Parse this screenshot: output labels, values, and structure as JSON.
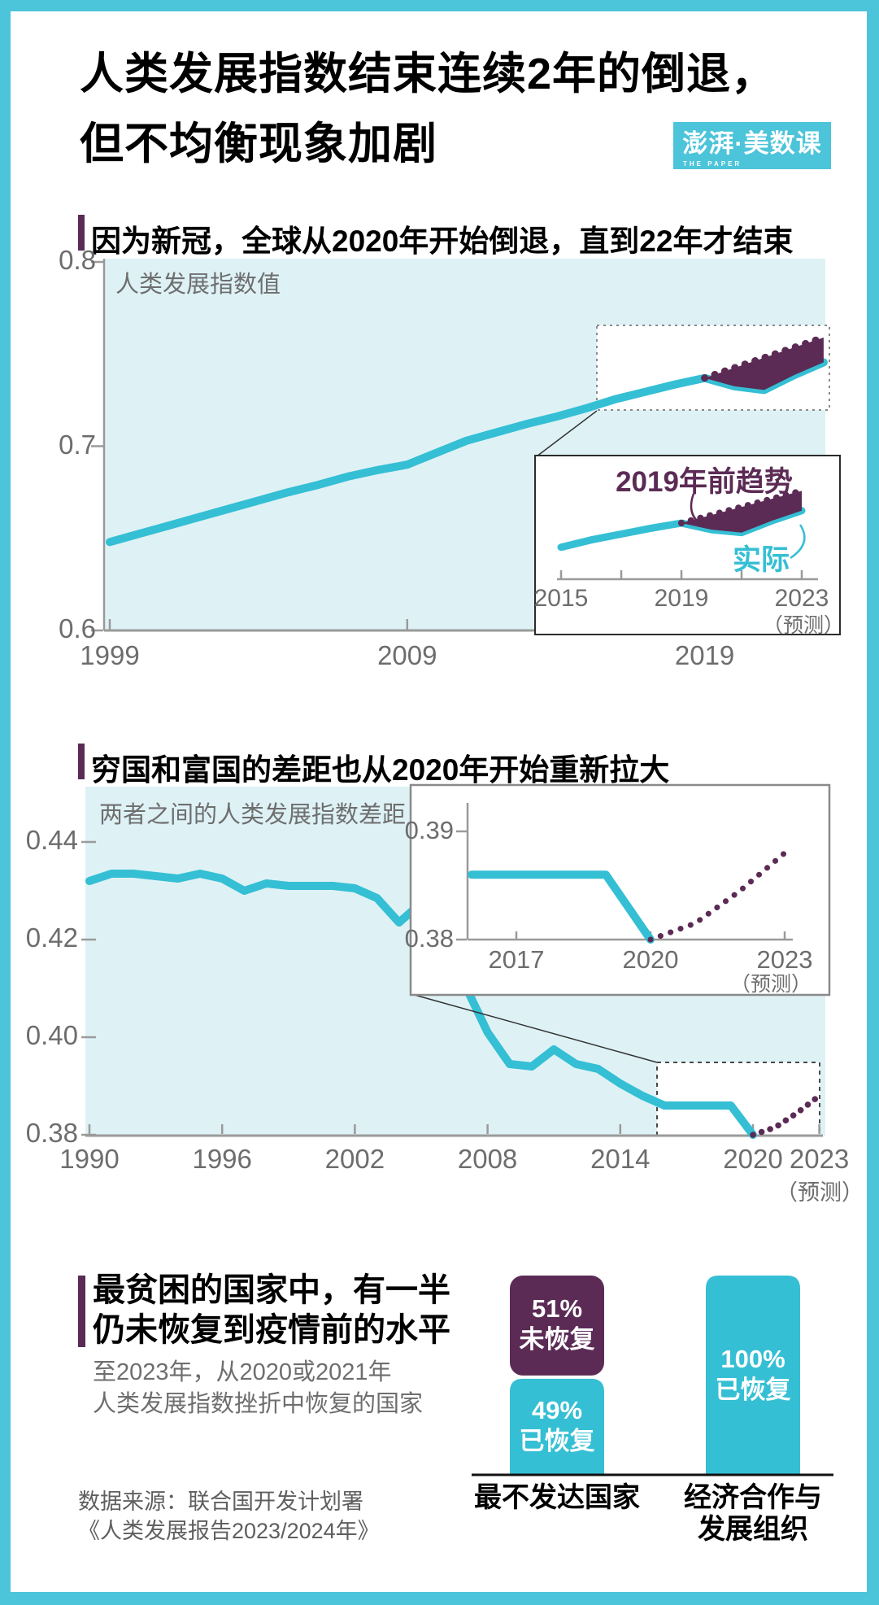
{
  "page": {
    "title": [
      "人类发展指数结束连续2年的倒退，",
      "但不均衡现象加剧"
    ],
    "logo": {
      "main": "澎湃·美数课",
      "sub": "THE PAPER"
    },
    "source": [
      "数据来源：联合国开发计划署",
      "《人类发展报告2023/2024年》"
    ]
  },
  "colors": {
    "cyan": "#35bfd4",
    "purple": "#5b2b55",
    "pale": "#def2f6",
    "frame": "#4cc4d9",
    "axis": "#9a9a9a",
    "tick_text": "#6d6d6d"
  },
  "chart_data": [
    {
      "id": "world_hdi",
      "type": "line",
      "title": "因为新冠，全球从2020年开始倒退，直到22年才结束",
      "ylabel": "人类发展指数值",
      "ylim": [
        0.6,
        0.8
      ],
      "yticks": [
        "0.8",
        "0.7",
        "0.6"
      ],
      "xticks": [
        "1999",
        "2009",
        "2019"
      ],
      "x": [
        1999,
        2000,
        2001,
        2002,
        2003,
        2004,
        2005,
        2006,
        2007,
        2008,
        2009,
        2010,
        2011,
        2012,
        2013,
        2014,
        2015,
        2016,
        2017,
        2018,
        2019,
        2020,
        2021,
        2022,
        2023
      ],
      "series": [
        {
          "name": "实际",
          "values": [
            0.648,
            0.6525,
            0.657,
            0.6615,
            0.666,
            0.6705,
            0.675,
            0.679,
            0.6835,
            0.687,
            0.69,
            0.6965,
            0.703,
            0.7075,
            0.712,
            0.716,
            0.7205,
            0.7255,
            0.7295,
            0.7335,
            0.737,
            0.7325,
            0.7305,
            0.7385,
            0.7455
          ]
        },
        {
          "name": "2019年前趋势",
          "x": [
            2019,
            2020,
            2021,
            2022,
            2023
          ],
          "values": [
            0.737,
            0.7425,
            0.748,
            0.7535,
            0.759
          ]
        }
      ],
      "inset": {
        "trend_label": "2019年前趋势",
        "actual_label": "实际",
        "xticks": [
          "2015",
          "2019",
          "2023"
        ],
        "xtick_marks": [
          2015,
          2017,
          2019,
          2021,
          2023
        ],
        "forecast_label": "（预测）",
        "from_year": 2015
      }
    },
    {
      "id": "hdi_gap_poor_rich",
      "type": "line",
      "title": "穷国和富国的差距也从2020年开始重新拉大",
      "ylabel": "两者之间的人类发展指数差距",
      "ylim": [
        0.38,
        0.44
      ],
      "yticks": [
        "0.44",
        "0.42",
        "0.40",
        "0.38"
      ],
      "xticks": [
        "1990",
        "1996",
        "2002",
        "2008",
        "2014",
        "2020",
        "2023"
      ],
      "forecast_label": "（预测）",
      "x": [
        1990,
        1991,
        1992,
        1993,
        1994,
        1995,
        1996,
        1997,
        1998,
        1999,
        2000,
        2001,
        2002,
        2003,
        2004,
        2005,
        2006,
        2007,
        2008,
        2009,
        2010,
        2011,
        2012,
        2013,
        2014,
        2015,
        2016,
        2017,
        2018,
        2019,
        2020
      ],
      "series": [
        {
          "name": "实际",
          "values": [
            0.432,
            0.4335,
            0.4335,
            0.433,
            0.4325,
            0.4335,
            0.4325,
            0.43,
            0.4315,
            0.431,
            0.431,
            0.431,
            0.4305,
            0.4285,
            0.4235,
            0.4275,
            0.4205,
            0.4105,
            0.401,
            0.3945,
            0.394,
            0.3975,
            0.3945,
            0.3935,
            0.3905,
            0.388,
            0.386,
            0.386,
            0.386,
            0.386,
            0.38
          ]
        },
        {
          "name": "预测",
          "x": [
            2020,
            2021,
            2022,
            2023
          ],
          "values": [
            0.38,
            0.3815,
            0.3845,
            0.388
          ]
        }
      ],
      "inset": {
        "yticks": [
          "0.39",
          "0.38"
        ],
        "xticks": [
          "2017",
          "2020",
          "2023"
        ],
        "forecast_label": "（预测）",
        "from_year": 2016
      }
    },
    {
      "id": "recovery_bars",
      "type": "bar",
      "title": [
        "最贫困的国家中，有一半",
        "仍未恢复到疫情前的水平"
      ],
      "subtitle": [
        "至2023年，从2020或2021年",
        "人类发展指数挫折中恢复的国家"
      ],
      "categories": [
        [
          "最不发达国家"
        ],
        [
          "经济合作与",
          "发展组织"
        ]
      ],
      "bars": [
        {
          "segments": [
            {
              "pct": 51,
              "status": "未恢复",
              "color_key": "purple"
            },
            {
              "pct": 49,
              "status": "已恢复",
              "color_key": "cyan"
            }
          ]
        },
        {
          "segments": [
            {
              "pct": 100,
              "status": "已恢复",
              "color_key": "cyan"
            }
          ]
        }
      ]
    }
  ]
}
